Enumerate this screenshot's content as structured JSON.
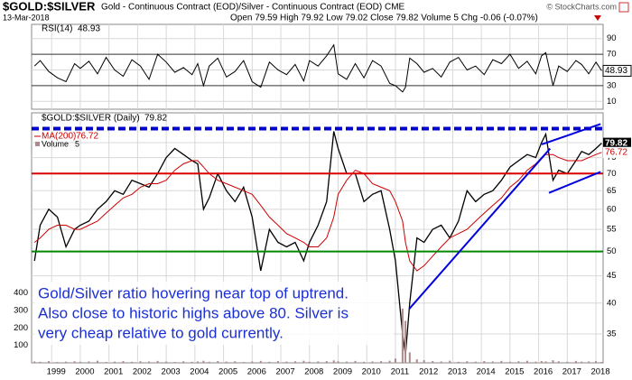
{
  "header": {
    "symbol": "$GOLD:$SILVER",
    "description": "Gold - Continuous Contract (EOD)/Silver - Continuous Contract (EOD) CME",
    "source": "© StockCharts.com",
    "date": "13-Mar-2018",
    "quote": "Open 79.59 High 79.92 Low 79.02 Close 79.82 Volume 5 Chg -0.06 (-0.07%)"
  },
  "chart_data": {
    "type": "line",
    "annotation": [
      "Gold/Silver ratio hovering near top of uptrend.",
      "Also close to historic highs above 80. Silver is",
      "very cheap relative to gold currently."
    ],
    "x": [
      1998.4,
      1998.6,
      1998.9,
      1999.2,
      1999.5,
      1999.8,
      2000.0,
      2000.3,
      2000.6,
      2000.9,
      2001.2,
      2001.5,
      2001.8,
      2002.1,
      2002.4,
      2002.7,
      2003.0,
      2003.3,
      2003.6,
      2003.9,
      2004.1,
      2004.3,
      2004.5,
      2004.8,
      2005.1,
      2005.4,
      2005.7,
      2006.0,
      2006.3,
      2006.6,
      2006.9,
      2007.2,
      2007.5,
      2007.8,
      2008.0,
      2008.3,
      2008.6,
      2008.85,
      2009.0,
      2009.3,
      2009.6,
      2009.9,
      2010.2,
      2010.5,
      2010.8,
      2011.0,
      2011.25,
      2011.35,
      2011.5,
      2011.75,
      2012.0,
      2012.3,
      2012.6,
      2012.9,
      2013.2,
      2013.5,
      2013.8,
      2014.1,
      2014.4,
      2014.7,
      2015.0,
      2015.3,
      2015.6,
      2015.9,
      2016.1,
      2016.25,
      2016.5,
      2016.7,
      2017.0,
      2017.3,
      2017.5,
      2017.75,
      2018.0,
      2018.2
    ],
    "xlim": [
      1998.3,
      2018.25
    ],
    "xticks": [
      1999,
      2000,
      2001,
      2002,
      2003,
      2004,
      2005,
      2006,
      2007,
      2008,
      2009,
      2010,
      2011,
      2012,
      2013,
      2014,
      2015,
      2016,
      2017,
      2018
    ],
    "ylim": [
      30.9,
      91
    ],
    "log_y": true,
    "yticks": [
      35,
      40,
      45,
      50,
      55,
      60,
      65,
      70,
      75,
      80
    ],
    "y2lim": [
      0,
      1430
    ],
    "y2ticks": [
      100,
      200,
      300,
      400
    ],
    "grid": true,
    "series": [
      {
        "name": "$GOLD:$SILVER (Daily)",
        "color": "#000000",
        "values": [
          48,
          56,
          60,
          58,
          51,
          55,
          56,
          57,
          60,
          62,
          65,
          64,
          68,
          67,
          66,
          70,
          75,
          78,
          76,
          74,
          73,
          60,
          63,
          70,
          65,
          62,
          66,
          58,
          46,
          55,
          52,
          51,
          52,
          48,
          52,
          56,
          62,
          84,
          78,
          70,
          70,
          62,
          64,
          65,
          55,
          48,
          35,
          32,
          40,
          53,
          52,
          55,
          56,
          53,
          57,
          65,
          62,
          64,
          65,
          68,
          72,
          74,
          76,
          75,
          80,
          83,
          68,
          71,
          70,
          74,
          77,
          76,
          78,
          79.82
        ]
      },
      {
        "name": "MA(200)",
        "color": "#cc0000",
        "values": [
          52,
          53,
          55,
          56,
          56,
          55,
          55,
          56,
          57,
          59,
          61,
          63,
          64,
          66,
          67,
          67,
          68,
          71,
          73,
          74,
          74,
          72,
          70,
          68,
          67,
          66,
          65,
          64,
          61,
          58,
          56,
          54,
          53,
          52,
          51,
          51,
          53,
          58,
          64,
          68,
          71,
          70,
          67,
          66,
          65,
          62,
          57,
          52,
          48,
          46,
          47,
          49,
          51,
          53,
          54,
          55,
          57,
          59,
          61,
          63,
          66,
          68,
          71,
          73,
          75,
          76,
          76,
          75,
          74,
          74,
          74,
          75,
          76,
          76.72
        ]
      },
      {
        "name": "Volume",
        "color": "#b08a8a",
        "axis": "y2",
        "values": [
          8,
          6,
          10,
          5,
          7,
          9,
          6,
          8,
          12,
          5,
          7,
          10,
          6,
          9,
          8,
          11,
          7,
          5,
          9,
          6,
          8,
          12,
          6,
          10,
          7,
          9,
          5,
          8,
          11,
          6,
          10,
          7,
          9,
          12,
          6,
          8,
          10,
          14,
          9,
          7,
          11,
          6,
          8,
          10,
          12,
          25,
          310,
          240,
          60,
          20,
          15,
          10,
          8,
          12,
          6,
          9,
          7,
          10,
          8,
          11,
          6,
          9,
          12,
          7,
          10,
          8,
          15,
          9,
          6,
          11,
          7,
          8,
          10,
          5
        ]
      }
    ],
    "hlines": [
      {
        "value": 85,
        "color": "#0000cc",
        "dashed": true
      },
      {
        "value": 70,
        "color": "#dd0000",
        "dashed": false
      },
      {
        "value": 50,
        "color": "#008800",
        "dashed": false
      }
    ],
    "trendlines": [
      {
        "color": "#0000dd",
        "points": [
          [
            2011.48,
            39
          ],
          [
            2016.4,
            78
          ]
        ]
      },
      {
        "color": "#0000dd",
        "points": [
          [
            2016.11,
            79.4
          ],
          [
            2018.16,
            86.7
          ]
        ]
      },
      {
        "color": "#0000dd",
        "points": [
          [
            2016.36,
            64.4
          ],
          [
            2018.16,
            70.5
          ]
        ]
      }
    ],
    "indicator": {
      "name": "RSI(14)",
      "color": "#000000",
      "ylim": [
        0,
        100
      ],
      "yticks": [
        10,
        30,
        50,
        70,
        90
      ],
      "values": [
        55,
        62,
        48,
        40,
        35,
        58,
        52,
        61,
        45,
        66,
        50,
        42,
        63,
        55,
        38,
        70,
        60,
        47,
        53,
        44,
        58,
        30,
        55,
        65,
        41,
        48,
        62,
        35,
        28,
        60,
        50,
        44,
        57,
        36,
        62,
        55,
        68,
        82,
        45,
        38,
        58,
        40,
        62,
        55,
        33,
        30,
        22,
        28,
        65,
        58,
        47,
        52,
        41,
        60,
        66,
        50,
        55,
        44,
        63,
        58,
        70,
        52,
        61,
        45,
        68,
        72,
        30,
        55,
        48,
        62,
        57,
        45,
        60,
        48.93
      ]
    }
  }
}
